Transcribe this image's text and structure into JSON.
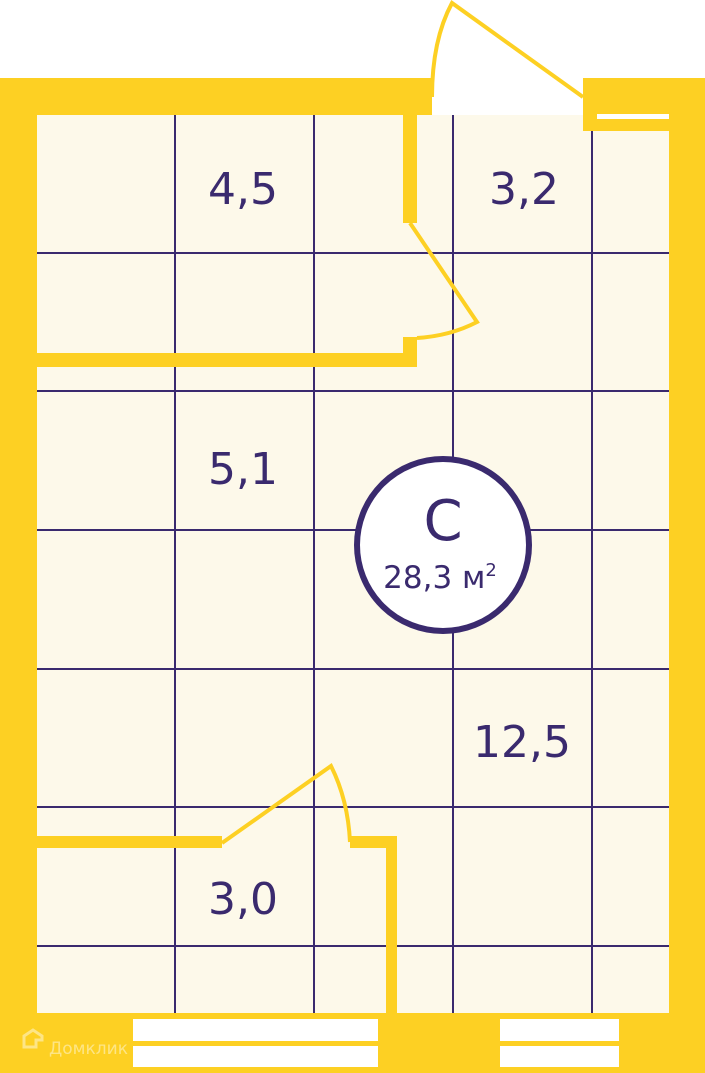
{
  "plan": {
    "rooms": [
      {
        "id": "room-top-left",
        "area": "4,5"
      },
      {
        "id": "room-top-right",
        "area": "3,2"
      },
      {
        "id": "room-middle",
        "area": "5,1"
      },
      {
        "id": "room-main",
        "area": "12,5"
      },
      {
        "id": "room-bathroom",
        "area": "3,0"
      }
    ],
    "badge": {
      "type": "С",
      "total_area": "28,3 м",
      "unit_sup": "2"
    },
    "watermark": "Домклик",
    "colors": {
      "wall": "#FDD023",
      "floor": "#FDF9EA",
      "grid": "#3A2A6E",
      "text": "#3A2A6E",
      "window": "#FFFFFF"
    }
  }
}
